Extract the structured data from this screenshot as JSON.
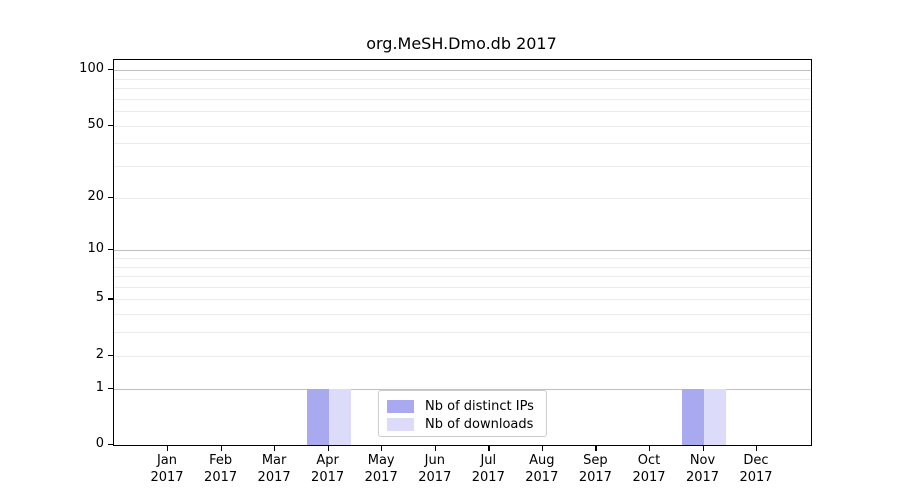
{
  "chart_data": {
    "type": "bar",
    "title": "org.MeSH.Dmo.db 2017",
    "categories": [
      "Jan",
      "Feb",
      "Mar",
      "Apr",
      "May",
      "Jun",
      "Jul",
      "Aug",
      "Sep",
      "Oct",
      "Nov",
      "Dec"
    ],
    "year_label": "2017",
    "series": [
      {
        "name": "Nb of distinct IPs",
        "color": "#a9a9f0",
        "values": [
          0,
          0,
          0,
          1,
          0,
          0,
          0,
          0,
          0,
          0,
          1,
          0
        ]
      },
      {
        "name": "Nb of downloads",
        "color": "#dcdcfa",
        "values": [
          0,
          0,
          0,
          1,
          0,
          0,
          0,
          0,
          0,
          0,
          1,
          0
        ]
      }
    ],
    "yscale": "log1p",
    "ylim": [
      0,
      113
    ],
    "yticks": [
      0,
      1,
      2,
      5,
      10,
      20,
      50,
      100
    ],
    "grid": "horizontal",
    "grid_major_values": [
      1,
      10,
      100
    ],
    "grid_minor_values": [
      2,
      3,
      4,
      5,
      6,
      7,
      8,
      9,
      20,
      30,
      40,
      50,
      60,
      70,
      80,
      90
    ],
    "legend_position": "lower center",
    "colors": {
      "bar_distinct_ips": "#a9a9f0",
      "bar_downloads": "#dcdcfa",
      "grid_major": "#c0c0c0",
      "grid_minor": "#ebebeb",
      "spine": "#000000",
      "text": "#000000"
    }
  }
}
